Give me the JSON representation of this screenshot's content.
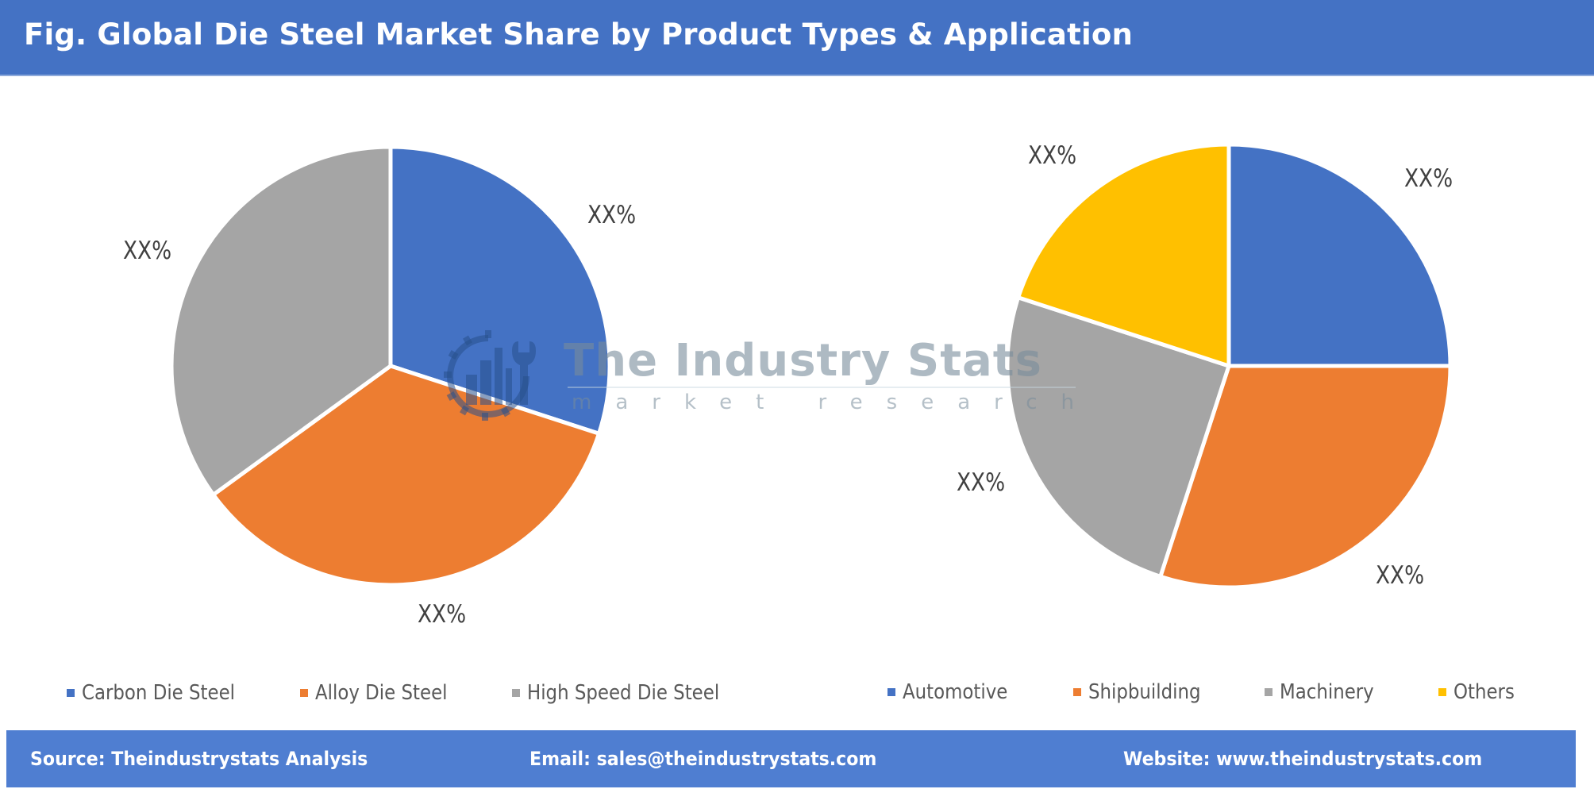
{
  "header": {
    "title": "Fig. Global Die Steel Market Share by Product Types & Application"
  },
  "colors": {
    "blue": "#4472c4",
    "orange": "#ed7d31",
    "gray": "#a5a5a5",
    "yellow": "#ffc000",
    "header_bg": "#4472c4",
    "footer_bg": "#4f7ed1"
  },
  "watermark": {
    "title": "The Industry Stats",
    "subtitle": "market research"
  },
  "chart_data": [
    {
      "type": "pie",
      "title": "Product Types",
      "categories": [
        "Carbon Die Steel",
        "Alloy Die Steel",
        "High Speed Die Steel"
      ],
      "values": [
        30,
        35,
        35
      ],
      "labels": [
        "XX%",
        "XX%",
        "XX%"
      ],
      "colors": [
        "#4472c4",
        "#ed7d31",
        "#a5a5a5"
      ],
      "legend_position": "bottom",
      "start_angle": 0,
      "direction": "clockwise"
    },
    {
      "type": "pie",
      "title": "Application",
      "categories": [
        "Automotive",
        "Shipbuilding",
        "Machinery",
        "Others"
      ],
      "values": [
        25,
        30,
        25,
        20
      ],
      "labels": [
        "XX%",
        "XX%",
        "XX%",
        "XX%"
      ],
      "colors": [
        "#4472c4",
        "#ed7d31",
        "#a5a5a5",
        "#ffc000"
      ],
      "legend_position": "bottom",
      "start_angle": 0,
      "direction": "clockwise"
    }
  ],
  "legend_left": [
    {
      "label": "Carbon Die Steel",
      "color": "#4472c4"
    },
    {
      "label": "Alloy Die Steel",
      "color": "#ed7d31"
    },
    {
      "label": "High Speed Die Steel",
      "color": "#a5a5a5"
    }
  ],
  "legend_right": [
    {
      "label": "Automotive",
      "color": "#4472c4"
    },
    {
      "label": "Shipbuilding",
      "color": "#ed7d31"
    },
    {
      "label": "Machinery",
      "color": "#a5a5a5"
    },
    {
      "label": "Others",
      "color": "#ffc000"
    }
  ],
  "footer": {
    "source": "Source: Theindustrystats Analysis",
    "email": "Email: sales@theindustrystats.com",
    "website": "Website: www.theindustrystats.com"
  }
}
